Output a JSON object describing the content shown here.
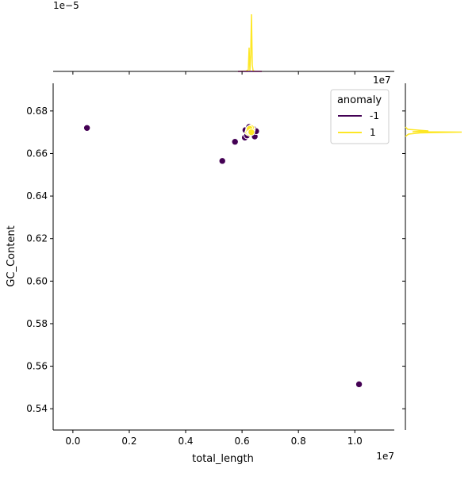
{
  "chart_data": {
    "type": "scatter",
    "xlabel": "total_length",
    "ylabel": "GC_Content",
    "x_offset_label": "1e7",
    "y_offset_label_right": "1e7",
    "top_offset_label": "1e−5",
    "xlim": [
      -0.07,
      1.14
    ],
    "ylim": [
      0.53,
      0.693
    ],
    "x_ticks": [
      0.0,
      0.2,
      0.4,
      0.6,
      0.8,
      1.0
    ],
    "x_tick_labels": [
      "0.0",
      "0.2",
      "0.4",
      "0.6",
      "0.8",
      "1.0"
    ],
    "y_ticks": [
      0.54,
      0.56,
      0.58,
      0.6,
      0.62,
      0.64,
      0.66,
      0.68
    ],
    "y_tick_labels": [
      "0.54",
      "0.56",
      "0.58",
      "0.60",
      "0.62",
      "0.64",
      "0.66",
      "0.68"
    ],
    "legend": {
      "title": "anomaly",
      "placement": "top-right",
      "entries": [
        {
          "label": "-1",
          "color": "#440154"
        },
        {
          "label": "1",
          "color": "#fde725"
        }
      ]
    },
    "series": [
      {
        "name": "-1",
        "color": "#440154",
        "points": [
          [
            0.05,
            0.672
          ],
          [
            0.53,
            0.6565
          ],
          [
            0.575,
            0.6655
          ],
          [
            0.61,
            0.6675
          ],
          [
            0.612,
            0.671
          ],
          [
            0.618,
            0.6685
          ],
          [
            0.625,
            0.6725
          ],
          [
            0.633,
            0.6695
          ],
          [
            0.64,
            0.6715
          ],
          [
            0.645,
            0.668
          ],
          [
            0.65,
            0.6705
          ],
          [
            1.015,
            0.5515
          ]
        ]
      },
      {
        "name": "1",
        "color": "#fde725",
        "points": [
          [
            0.622,
            0.67
          ],
          [
            0.626,
            0.6712
          ],
          [
            0.629,
            0.6705
          ],
          [
            0.631,
            0.6718
          ],
          [
            0.634,
            0.6709
          ],
          [
            0.628,
            0.6696
          ],
          [
            0.635,
            0.6714
          ],
          [
            0.624,
            0.671
          ],
          [
            0.63,
            0.6702
          ],
          [
            0.632,
            0.672
          ],
          [
            0.627,
            0.6716
          ],
          [
            0.633,
            0.67
          ]
        ]
      }
    ]
  }
}
